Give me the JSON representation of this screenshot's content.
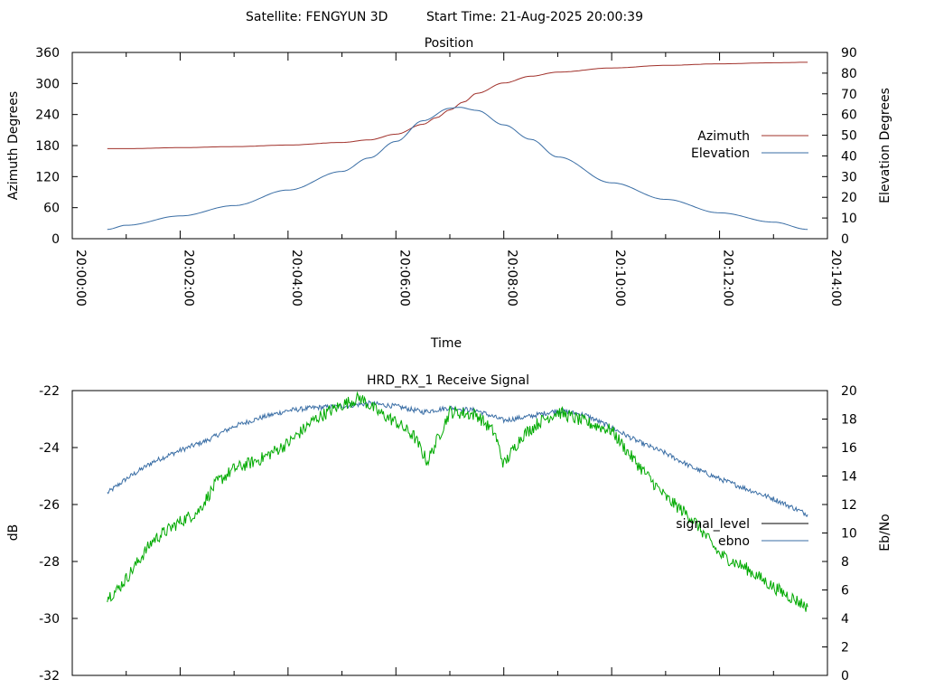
{
  "header": {
    "satellite_label": "Satellite: FENGYUN 3D",
    "start_time_label": "Start Time: 21-Aug-2025 20:00:39"
  },
  "chart_data": [
    {
      "type": "line",
      "title": "Position",
      "xlabel": "Time",
      "ylabel": "Azimuth Degrees",
      "y2label": "Elevation Degrees",
      "xlim": [
        "20:00:00",
        "20:14:00"
      ],
      "x_ticks": [
        "20:00:00",
        "20:02:00",
        "20:04:00",
        "20:06:00",
        "20:08:00",
        "20:10:00",
        "20:12:00",
        "20:14:00"
      ],
      "ylim": [
        0,
        360
      ],
      "y_ticks": [
        0,
        60,
        120,
        180,
        240,
        300,
        360
      ],
      "y2lim": [
        0,
        90
      ],
      "y2_ticks": [
        0,
        10,
        20,
        30,
        40,
        50,
        60,
        70,
        80,
        90
      ],
      "grid": false,
      "legend": "right",
      "series": [
        {
          "name": "Azimuth",
          "axis": "left",
          "color": "#a0302a",
          "x": [
            "20:00:39",
            "20:01:00",
            "20:02:00",
            "20:03:00",
            "20:04:00",
            "20:05:00",
            "20:05:30",
            "20:06:00",
            "20:06:30",
            "20:06:45",
            "20:07:00",
            "20:07:15",
            "20:07:30",
            "20:08:00",
            "20:08:30",
            "20:09:00",
            "20:10:00",
            "20:11:00",
            "20:12:00",
            "20:13:00",
            "20:13:38"
          ],
          "values": [
            174,
            174,
            176,
            178,
            181,
            186,
            191,
            202,
            221,
            234,
            249,
            264,
            281,
            301,
            314,
            322,
            330,
            335,
            338,
            340,
            341
          ]
        },
        {
          "name": "Elevation",
          "axis": "right",
          "color": "#3a6ea5",
          "x": [
            "20:00:39",
            "20:01:00",
            "20:02:00",
            "20:03:00",
            "20:04:00",
            "20:05:00",
            "20:05:30",
            "20:06:00",
            "20:06:30",
            "20:07:00",
            "20:07:10",
            "20:07:30",
            "20:08:00",
            "20:08:30",
            "20:09:00",
            "20:10:00",
            "20:11:00",
            "20:12:00",
            "20:13:00",
            "20:13:38"
          ],
          "values": [
            4.5,
            6.5,
            11,
            16,
            23.5,
            32.5,
            39,
            47,
            57,
            63,
            63.5,
            62,
            55,
            48,
            39.5,
            27,
            19,
            12.5,
            8,
            4.5
          ]
        }
      ]
    },
    {
      "type": "line",
      "title": "HRD_RX_1 Receive Signal",
      "ylabel": "dB",
      "y2label": "Eb/No",
      "xlim": [
        "20:00:00",
        "20:14:00"
      ],
      "ylim": [
        -32,
        -22
      ],
      "y_ticks": [
        -32,
        -30,
        -28,
        -26,
        -24,
        -22
      ],
      "y2lim": [
        0,
        20
      ],
      "y2_ticks": [
        0,
        2,
        4,
        6,
        8,
        10,
        12,
        14,
        16,
        18,
        20
      ],
      "grid": false,
      "legend": "right",
      "series": [
        {
          "name": "signal_level",
          "axis": "left",
          "color": "#000000",
          "x": [],
          "values": []
        },
        {
          "name": "ebno",
          "axis": "right",
          "color": "#3a6ea5",
          "x": [
            "20:00:39",
            "20:01:00",
            "20:01:30",
            "20:02:00",
            "20:02:30",
            "20:03:00",
            "20:03:30",
            "20:04:00",
            "20:04:30",
            "20:05:00",
            "20:05:30",
            "20:06:00",
            "20:06:30",
            "20:07:00",
            "20:07:30",
            "20:08:00",
            "20:08:30",
            "20:09:00",
            "20:09:30",
            "20:10:00",
            "20:10:30",
            "20:11:00",
            "20:11:30",
            "20:12:00",
            "20:12:30",
            "20:13:00",
            "20:13:38"
          ],
          "values": [
            12.8,
            13.8,
            15.0,
            15.8,
            16.5,
            17.5,
            18.1,
            18.6,
            18.8,
            18.9,
            19.1,
            18.9,
            18.5,
            18.8,
            18.6,
            17.9,
            18.2,
            18.6,
            18.3,
            17.4,
            16.4,
            15.6,
            14.6,
            13.8,
            13.1,
            12.4,
            11.3
          ]
        },
        {
          "name": "",
          "axis": "right",
          "color": "#00aa00",
          "x": [
            "20:00:39",
            "20:00:50",
            "20:01:00",
            "20:01:30",
            "20:02:00",
            "20:02:20",
            "20:02:40",
            "20:03:00",
            "20:03:30",
            "20:04:00",
            "20:04:30",
            "20:05:00",
            "20:05:20",
            "20:05:40",
            "20:06:00",
            "20:06:20",
            "20:06:35",
            "20:07:00",
            "20:07:30",
            "20:07:50",
            "20:08:00",
            "20:08:20",
            "20:08:40",
            "20:09:00",
            "20:09:30",
            "20:10:00",
            "20:10:20",
            "20:10:40",
            "20:11:00",
            "20:11:30",
            "20:12:00",
            "20:12:30",
            "20:13:00",
            "20:13:38"
          ],
          "values": [
            5.5,
            6.0,
            6.8,
            9.5,
            10.8,
            11.5,
            13.5,
            14.5,
            15.2,
            16.3,
            18.0,
            19.0,
            19.5,
            18.5,
            17.8,
            16.8,
            15.0,
            18.5,
            18.3,
            17.0,
            14.8,
            16.8,
            17.8,
            18.5,
            17.8,
            17.2,
            15.5,
            14.0,
            12.5,
            11.0,
            8.5,
            7.5,
            6.2,
            4.8
          ]
        }
      ]
    }
  ]
}
